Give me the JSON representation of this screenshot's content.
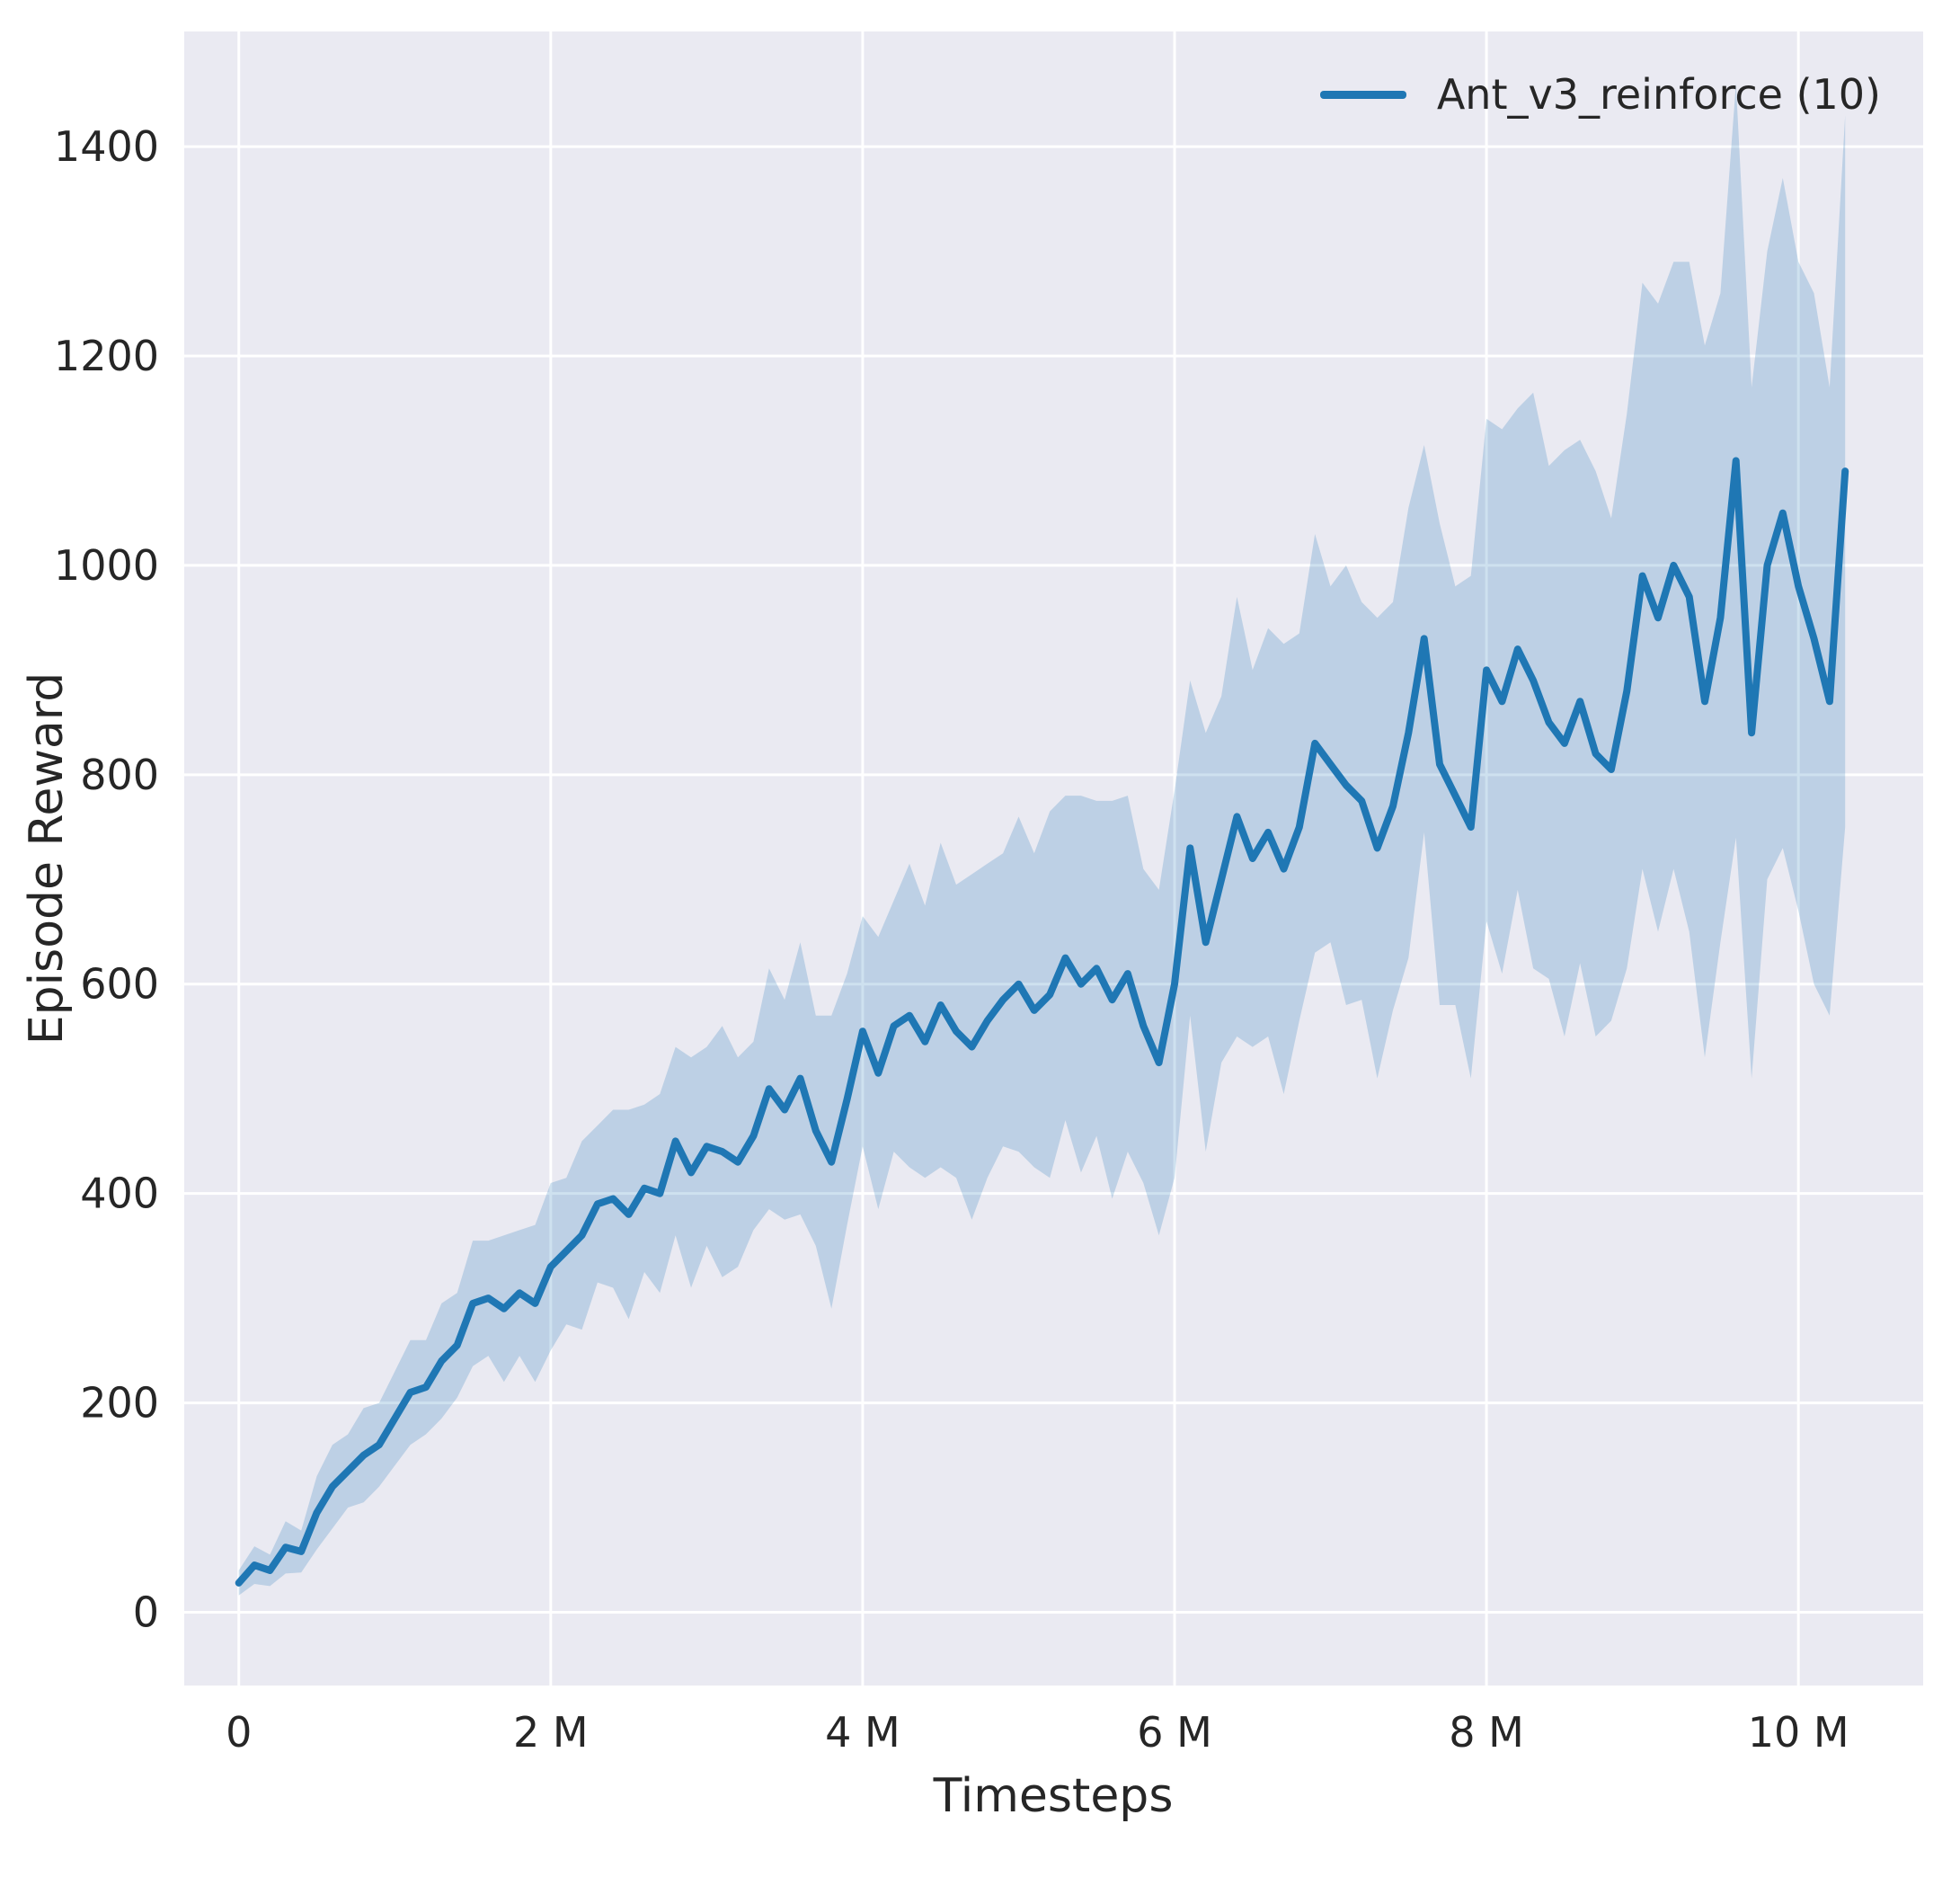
{
  "figure": {
    "background": "#ffffff",
    "panel_background": "#eaeaf2",
    "grid_color": "#ffffff",
    "text_color": "#262626"
  },
  "legend": {
    "entries": [
      {
        "label": "Ant_v3_reinforce (10)",
        "color": "#1f77b4"
      }
    ]
  },
  "chart_data": {
    "type": "line",
    "title": "",
    "xlabel": "Timesteps",
    "ylabel": "Episode Reward",
    "x_unit": "millions",
    "xlim": [
      -0.35,
      10.8
    ],
    "ylim": [
      -70,
      1510
    ],
    "grid": true,
    "legend_position": "upper right",
    "xticks": {
      "values": [
        0,
        2,
        4,
        6,
        8,
        10
      ],
      "labels": [
        "0",
        "2 M",
        "4 M",
        "6 M",
        "8 M",
        "10 M"
      ]
    },
    "yticks": {
      "values": [
        0,
        200,
        400,
        600,
        800,
        1000,
        1200,
        1400
      ],
      "labels": [
        "0",
        "200",
        "400",
        "600",
        "800",
        "1000",
        "1200",
        "1400"
      ]
    },
    "series": [
      {
        "name": "Ant_v3_reinforce (10)",
        "color": "#1f77b4",
        "band_opacity": 0.22,
        "line_width": 8,
        "x": [
          0.0,
          0.1,
          0.2,
          0.3,
          0.4,
          0.5,
          0.6,
          0.7,
          0.8,
          0.9,
          1.0,
          1.1,
          1.2,
          1.3,
          1.4,
          1.5,
          1.6,
          1.7,
          1.8,
          1.9,
          2.0,
          2.1,
          2.2,
          2.3,
          2.4,
          2.5,
          2.6,
          2.7,
          2.8,
          2.9,
          3.0,
          3.1,
          3.2,
          3.3,
          3.4,
          3.5,
          3.6,
          3.7,
          3.8,
          3.9,
          4.0,
          4.1,
          4.2,
          4.3,
          4.4,
          4.5,
          4.6,
          4.7,
          4.8,
          4.9,
          5.0,
          5.1,
          5.2,
          5.3,
          5.4,
          5.5,
          5.6,
          5.7,
          5.8,
          5.9,
          6.0,
          6.1,
          6.2,
          6.3,
          6.4,
          6.5,
          6.6,
          6.7,
          6.8,
          6.9,
          7.0,
          7.1,
          7.2,
          7.3,
          7.4,
          7.5,
          7.6,
          7.7,
          7.8,
          7.9,
          8.0,
          8.1,
          8.2,
          8.3,
          8.4,
          8.5,
          8.6,
          8.7,
          8.8,
          8.9,
          9.0,
          9.1,
          9.2,
          9.3,
          9.4,
          9.5,
          9.6,
          9.7,
          9.8,
          9.9,
          10.0,
          10.1,
          10.2,
          10.3
        ],
        "mean": [
          28,
          45,
          40,
          62,
          58,
          95,
          120,
          135,
          150,
          160,
          185,
          210,
          215,
          240,
          255,
          295,
          300,
          290,
          305,
          295,
          330,
          345,
          360,
          390,
          395,
          380,
          405,
          400,
          450,
          420,
          445,
          440,
          430,
          455,
          500,
          480,
          510,
          460,
          430,
          490,
          555,
          515,
          560,
          570,
          545,
          580,
          555,
          540,
          565,
          585,
          600,
          575,
          590,
          625,
          600,
          615,
          585,
          610,
          560,
          525,
          600,
          730,
          640,
          700,
          760,
          720,
          745,
          710,
          750,
          830,
          810,
          790,
          775,
          730,
          770,
          840,
          930,
          810,
          780,
          750,
          900,
          870,
          920,
          890,
          850,
          830,
          870,
          820,
          805,
          880,
          990,
          950,
          1000,
          970,
          870,
          950,
          1100,
          840,
          1000,
          1050,
          980,
          930,
          870,
          1090
        ],
        "spread": [
          12,
          18,
          15,
          25,
          20,
          35,
          40,
          35,
          45,
          40,
          45,
          50,
          45,
          55,
          50,
          60,
          55,
          70,
          60,
          75,
          80,
          70,
          90,
          75,
          85,
          100,
          80,
          95,
          90,
          110,
          95,
          120,
          100,
          90,
          115,
          105,
          130,
          110,
          140,
          120,
          110,
          130,
          120,
          145,
          130,
          155,
          140,
          165,
          150,
          140,
          160,
          150,
          175,
          155,
          180,
          160,
          190,
          170,
          150,
          165,
          185,
          160,
          200,
          175,
          210,
          180,
          195,
          215,
          185,
          200,
          170,
          210,
          190,
          220,
          195,
          215,
          185,
          230,
          200,
          240,
          240,
          260,
          230,
          275,
          245,
          280,
          250,
          270,
          240,
          265,
          280,
          300,
          290,
          320,
          340,
          310,
          360,
          330,
          300,
          320,
          310,
          330,
          300,
          340
        ]
      }
    ]
  }
}
